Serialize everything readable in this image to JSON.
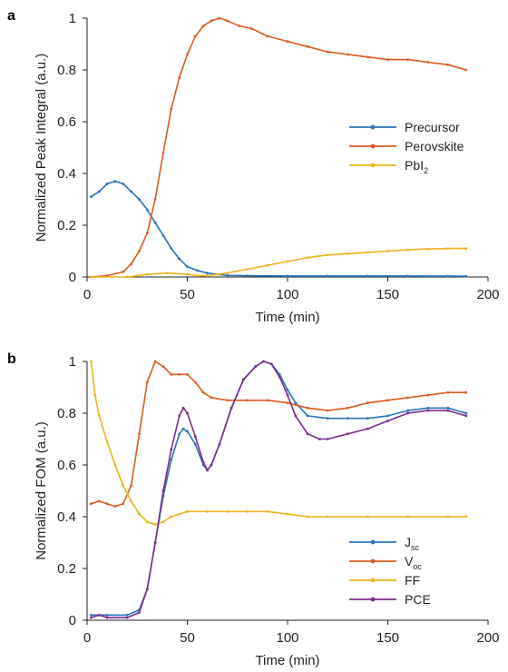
{
  "chart_data": [
    {
      "panel": "a",
      "type": "line",
      "xlabel": "Time (min)",
      "ylabel": "Normalized Peak Integral (a.u.)",
      "xlim": [
        0,
        200
      ],
      "ylim": [
        0,
        1
      ],
      "xticks": [
        "0",
        "50",
        "100",
        "150",
        "200"
      ],
      "yticks": [
        "0",
        "0.2",
        "0.4",
        "0.6",
        "0.8",
        "1"
      ],
      "legend_position": "right",
      "series": [
        {
          "name": "Precursor",
          "name_main": "Precursor",
          "name_sub": "",
          "color": "#2a74b8",
          "points": [
            [
              2,
              0.31
            ],
            [
              6,
              0.33
            ],
            [
              10,
              0.36
            ],
            [
              14,
              0.37
            ],
            [
              18,
              0.36
            ],
            [
              22,
              0.33
            ],
            [
              26,
              0.3
            ],
            [
              30,
              0.26
            ],
            [
              34,
              0.21
            ],
            [
              38,
              0.16
            ],
            [
              42,
              0.11
            ],
            [
              46,
              0.07
            ],
            [
              50,
              0.04
            ],
            [
              55,
              0.025
            ],
            [
              60,
              0.015
            ],
            [
              65,
              0.01
            ],
            [
              70,
              0.006
            ],
            [
              80,
              0.005
            ],
            [
              100,
              0.004
            ],
            [
              120,
              0.004
            ],
            [
              140,
              0.004
            ],
            [
              160,
              0.004
            ],
            [
              180,
              0.003
            ],
            [
              189,
              0.003
            ]
          ]
        },
        {
          "name": "Perovskite",
          "name_main": "Perovskite",
          "name_sub": "",
          "color": "#dc5a20",
          "points": [
            [
              2,
              0.0
            ],
            [
              10,
              0.005
            ],
            [
              18,
              0.02
            ],
            [
              22,
              0.05
            ],
            [
              26,
              0.1
            ],
            [
              30,
              0.17
            ],
            [
              34,
              0.3
            ],
            [
              38,
              0.48
            ],
            [
              42,
              0.65
            ],
            [
              46,
              0.77
            ],
            [
              50,
              0.86
            ],
            [
              54,
              0.93
            ],
            [
              58,
              0.97
            ],
            [
              62,
              0.99
            ],
            [
              66,
              1.0
            ],
            [
              70,
              0.99
            ],
            [
              76,
              0.97
            ],
            [
              82,
              0.96
            ],
            [
              90,
              0.93
            ],
            [
              100,
              0.91
            ],
            [
              110,
              0.89
            ],
            [
              120,
              0.87
            ],
            [
              130,
              0.86
            ],
            [
              140,
              0.85
            ],
            [
              150,
              0.84
            ],
            [
              160,
              0.84
            ],
            [
              170,
              0.83
            ],
            [
              180,
              0.82
            ],
            [
              189,
              0.8
            ]
          ]
        },
        {
          "name": "PbI2",
          "name_main": "PbI",
          "name_sub": "2",
          "color": "#efb21d",
          "points": [
            [
              2,
              0.0
            ],
            [
              20,
              0.0
            ],
            [
              30,
              0.01
            ],
            [
              40,
              0.015
            ],
            [
              50,
              0.01
            ],
            [
              55,
              0.005
            ],
            [
              60,
              0.005
            ],
            [
              65,
              0.01
            ],
            [
              70,
              0.015
            ],
            [
              80,
              0.03
            ],
            [
              90,
              0.045
            ],
            [
              100,
              0.06
            ],
            [
              110,
              0.075
            ],
            [
              120,
              0.085
            ],
            [
              130,
              0.09
            ],
            [
              140,
              0.095
            ],
            [
              150,
              0.1
            ],
            [
              160,
              0.105
            ],
            [
              170,
              0.108
            ],
            [
              180,
              0.11
            ],
            [
              189,
              0.11
            ]
          ]
        }
      ]
    },
    {
      "panel": "b",
      "type": "line",
      "xlabel": "Time (min)",
      "ylabel": "Normalized FOM (a.u.)",
      "xlim": [
        0,
        200
      ],
      "ylim": [
        0,
        1
      ],
      "xticks": [
        "0",
        "50",
        "100",
        "150",
        "200"
      ],
      "yticks": [
        "0",
        "0.2",
        "0.4",
        "0.6",
        "0.8",
        "1"
      ],
      "legend_position": "right",
      "series": [
        {
          "name": "Jsc",
          "name_main": "J",
          "name_sub": "sc",
          "color": "#2a74b8",
          "points": [
            [
              2,
              0.02
            ],
            [
              10,
              0.02
            ],
            [
              20,
              0.02
            ],
            [
              26,
              0.04
            ],
            [
              30,
              0.12
            ],
            [
              34,
              0.3
            ],
            [
              38,
              0.48
            ],
            [
              42,
              0.62
            ],
            [
              46,
              0.72
            ],
            [
              48,
              0.74
            ],
            [
              50,
              0.73
            ],
            [
              54,
              0.68
            ],
            [
              58,
              0.6
            ],
            [
              60,
              0.58
            ],
            [
              62,
              0.6
            ],
            [
              66,
              0.68
            ],
            [
              72,
              0.82
            ],
            [
              78,
              0.93
            ],
            [
              84,
              0.98
            ],
            [
              88,
              1.0
            ],
            [
              92,
              0.99
            ],
            [
              96,
              0.95
            ],
            [
              100,
              0.89
            ],
            [
              104,
              0.84
            ],
            [
              110,
              0.79
            ],
            [
              120,
              0.78
            ],
            [
              130,
              0.78
            ],
            [
              140,
              0.78
            ],
            [
              150,
              0.79
            ],
            [
              160,
              0.81
            ],
            [
              170,
              0.82
            ],
            [
              180,
              0.82
            ],
            [
              189,
              0.8
            ]
          ]
        },
        {
          "name": "Voc",
          "name_main": "V",
          "name_sub": "oc",
          "color": "#dc5a20",
          "points": [
            [
              2,
              0.45
            ],
            [
              6,
              0.46
            ],
            [
              10,
              0.45
            ],
            [
              14,
              0.44
            ],
            [
              18,
              0.45
            ],
            [
              22,
              0.52
            ],
            [
              26,
              0.72
            ],
            [
              30,
              0.92
            ],
            [
              34,
              1.0
            ],
            [
              38,
              0.98
            ],
            [
              42,
              0.95
            ],
            [
              46,
              0.95
            ],
            [
              50,
              0.95
            ],
            [
              54,
              0.92
            ],
            [
              58,
              0.88
            ],
            [
              62,
              0.86
            ],
            [
              70,
              0.85
            ],
            [
              80,
              0.85
            ],
            [
              90,
              0.85
            ],
            [
              100,
              0.84
            ],
            [
              110,
              0.82
            ],
            [
              120,
              0.81
            ],
            [
              130,
              0.82
            ],
            [
              140,
              0.84
            ],
            [
              150,
              0.85
            ],
            [
              160,
              0.86
            ],
            [
              170,
              0.87
            ],
            [
              180,
              0.88
            ],
            [
              189,
              0.88
            ]
          ]
        },
        {
          "name": "FF",
          "name_main": "FF",
          "name_sub": "",
          "color": "#efb21d",
          "points": [
            [
              2,
              1.0
            ],
            [
              4,
              0.87
            ],
            [
              6,
              0.79
            ],
            [
              10,
              0.69
            ],
            [
              14,
              0.6
            ],
            [
              18,
              0.52
            ],
            [
              22,
              0.46
            ],
            [
              26,
              0.41
            ],
            [
              30,
              0.38
            ],
            [
              34,
              0.37
            ],
            [
              38,
              0.38
            ],
            [
              42,
              0.4
            ],
            [
              46,
              0.41
            ],
            [
              50,
              0.42
            ],
            [
              60,
              0.42
            ],
            [
              70,
              0.42
            ],
            [
              80,
              0.42
            ],
            [
              90,
              0.42
            ],
            [
              100,
              0.41
            ],
            [
              110,
              0.4
            ],
            [
              120,
              0.4
            ],
            [
              140,
              0.4
            ],
            [
              160,
              0.4
            ],
            [
              180,
              0.4
            ],
            [
              189,
              0.4
            ]
          ]
        },
        {
          "name": "PCE",
          "name_main": "PCE",
          "name_sub": "",
          "color": "#7b2c8d",
          "points": [
            [
              2,
              0.01
            ],
            [
              6,
              0.02
            ],
            [
              10,
              0.01
            ],
            [
              20,
              0.01
            ],
            [
              26,
              0.03
            ],
            [
              30,
              0.12
            ],
            [
              34,
              0.3
            ],
            [
              38,
              0.5
            ],
            [
              42,
              0.66
            ],
            [
              46,
              0.79
            ],
            [
              48,
              0.82
            ],
            [
              50,
              0.8
            ],
            [
              54,
              0.71
            ],
            [
              58,
              0.61
            ],
            [
              60,
              0.58
            ],
            [
              62,
              0.6
            ],
            [
              66,
              0.68
            ],
            [
              72,
              0.82
            ],
            [
              78,
              0.93
            ],
            [
              84,
              0.98
            ],
            [
              88,
              1.0
            ],
            [
              92,
              0.99
            ],
            [
              96,
              0.94
            ],
            [
              100,
              0.87
            ],
            [
              104,
              0.79
            ],
            [
              110,
              0.72
            ],
            [
              116,
              0.7
            ],
            [
              120,
              0.7
            ],
            [
              130,
              0.72
            ],
            [
              140,
              0.74
            ],
            [
              150,
              0.77
            ],
            [
              160,
              0.8
            ],
            [
              170,
              0.81
            ],
            [
              180,
              0.81
            ],
            [
              189,
              0.79
            ]
          ]
        }
      ]
    }
  ]
}
